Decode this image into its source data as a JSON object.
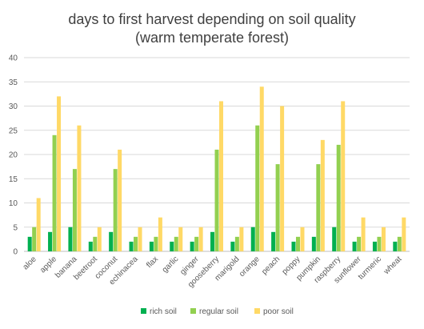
{
  "chart_data": {
    "type": "bar",
    "title": "days to first harvest depending on soil quality",
    "subtitle": "(warm temperate forest)",
    "xlabel": "",
    "ylabel": "",
    "ylim": [
      0,
      40
    ],
    "yticks": [
      0,
      5,
      10,
      15,
      20,
      25,
      30,
      35,
      40
    ],
    "grid": true,
    "legend_position": "bottom",
    "categories": [
      "aloe",
      "apple",
      "banana",
      "beetroot",
      "coconut",
      "echinacea",
      "flax",
      "garlic",
      "ginger",
      "gooseberry",
      "marigold",
      "orange",
      "peach",
      "poppy",
      "pumpkin",
      "raspberry",
      "sunflower",
      "turmeric",
      "wheat"
    ],
    "series": [
      {
        "name": "rich soil",
        "color": "#00b050",
        "values": [
          3,
          4,
          5,
          2,
          4,
          2,
          2,
          2,
          2,
          4,
          2,
          5,
          4,
          2,
          3,
          5,
          2,
          2,
          2
        ]
      },
      {
        "name": "regular soil",
        "color": "#92d050",
        "values": [
          5,
          24,
          17,
          3,
          17,
          3,
          3,
          3,
          3,
          21,
          3,
          26,
          18,
          3,
          18,
          22,
          3,
          3,
          3
        ]
      },
      {
        "name": "poor soil",
        "color": "#ffd966",
        "values": [
          11,
          32,
          26,
          5,
          21,
          5,
          7,
          5,
          5,
          31,
          5,
          34,
          30,
          5,
          23,
          31,
          7,
          5,
          7
        ]
      }
    ]
  }
}
